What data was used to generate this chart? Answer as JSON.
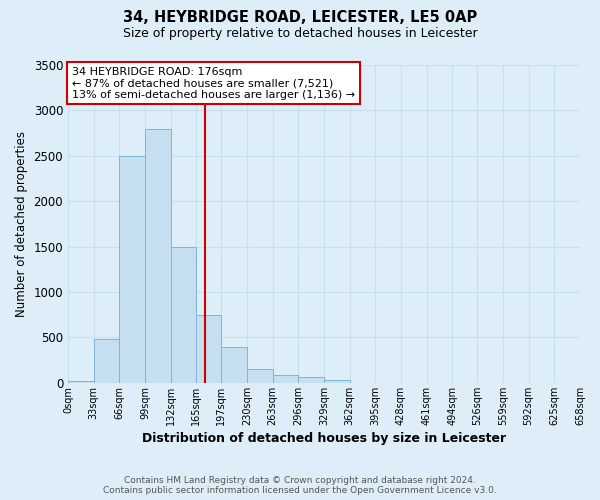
{
  "title_line1": "34, HEYBRIDGE ROAD, LEICESTER, LE5 0AP",
  "title_line2": "Size of property relative to detached houses in Leicester",
  "xlabel": "Distribution of detached houses by size in Leicester",
  "ylabel": "Number of detached properties",
  "bar_edges": [
    0,
    33,
    66,
    99,
    132,
    165,
    197,
    230,
    263,
    296,
    329,
    362,
    395,
    428,
    461,
    494,
    526,
    559,
    592,
    625,
    658
  ],
  "bar_heights": [
    20,
    480,
    2500,
    2800,
    1500,
    750,
    400,
    150,
    90,
    60,
    30,
    0,
    0,
    0,
    0,
    0,
    0,
    0,
    0,
    0
  ],
  "bar_color": "#c5dff0",
  "bar_edgecolor": "#7db4d8",
  "marker_x": 176,
  "marker_color": "#cc0000",
  "ylim": [
    0,
    3500
  ],
  "xlim": [
    0,
    658
  ],
  "annotation_title": "34 HEYBRIDGE ROAD: 176sqm",
  "annotation_line1": "← 87% of detached houses are smaller (7,521)",
  "annotation_line2": "13% of semi-detached houses are larger (1,136) →",
  "annotation_box_color": "#ffffff",
  "annotation_box_edgecolor": "#cc0000",
  "footer_line1": "Contains HM Land Registry data © Crown copyright and database right 2024.",
  "footer_line2": "Contains public sector information licensed under the Open Government Licence v3.0.",
  "tick_labels": [
    "0sqm",
    "33sqm",
    "66sqm",
    "99sqm",
    "132sqm",
    "165sqm",
    "197sqm",
    "230sqm",
    "263sqm",
    "296sqm",
    "329sqm",
    "362sqm",
    "395sqm",
    "428sqm",
    "461sqm",
    "494sqm",
    "526sqm",
    "559sqm",
    "592sqm",
    "625sqm",
    "658sqm"
  ],
  "grid_color": "#c8dff0",
  "background_color": "#deeef8",
  "yticks": [
    0,
    500,
    1000,
    1500,
    2000,
    2500,
    3000,
    3500
  ]
}
